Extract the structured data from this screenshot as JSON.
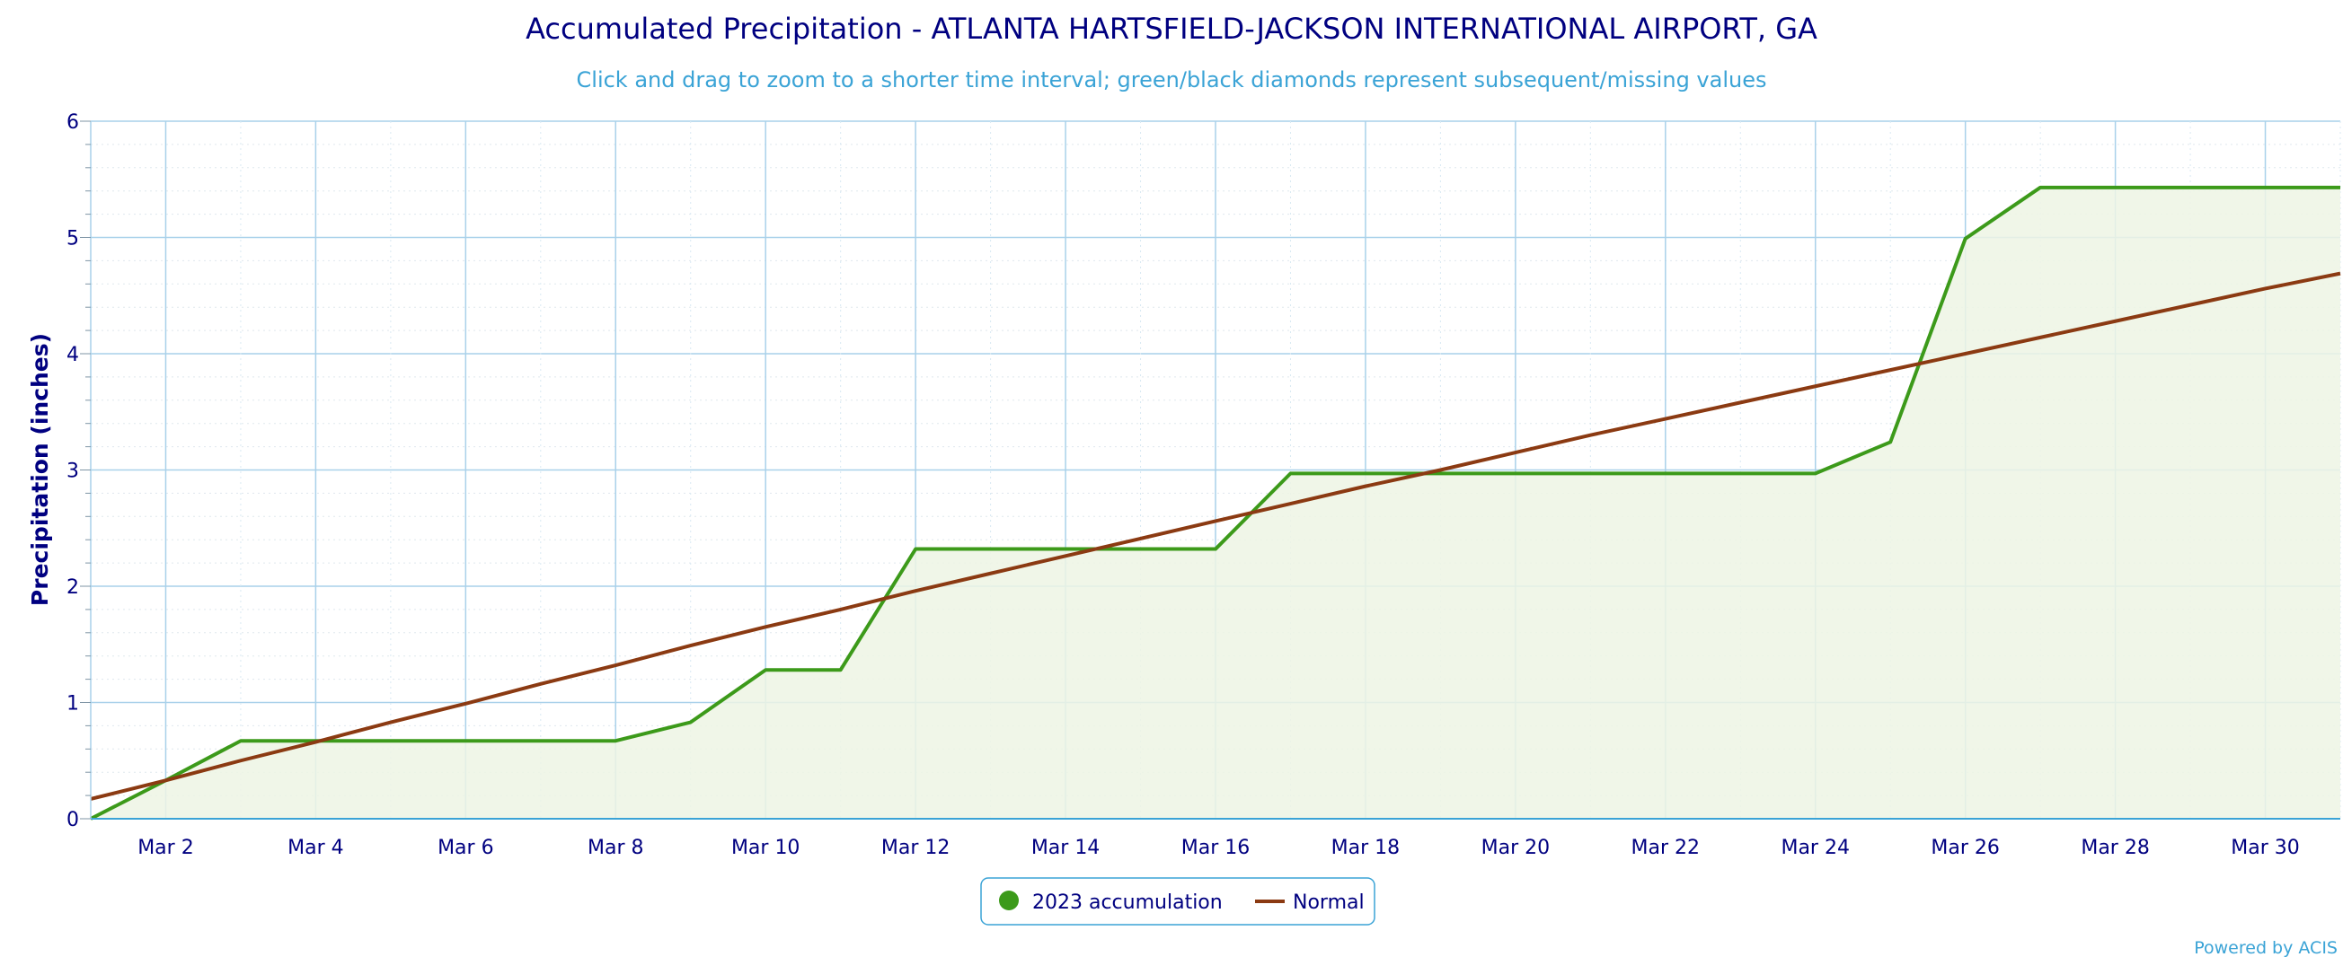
{
  "chart_data": {
    "type": "line",
    "title": "Accumulated Precipitation - ATLANTA HARTSFIELD-JACKSON INTERNATIONAL AIRPORT, GA",
    "subtitle": "Click and drag to zoom to a shorter time interval; green/black diamonds represent subsequent/missing values",
    "ylabel": "Precipitation (inches)",
    "xlabel": "",
    "ylim": [
      0,
      6
    ],
    "xlim": [
      "Mar 1",
      "Mar 31"
    ],
    "grid": true,
    "legend_position": "bottom-center",
    "x_tick_labels": [
      "Mar 2",
      "Mar 4",
      "Mar 6",
      "Mar 8",
      "Mar 10",
      "Mar 12",
      "Mar 14",
      "Mar 16",
      "Mar 18",
      "Mar 20",
      "Mar 22",
      "Mar 24",
      "Mar 26",
      "Mar 28",
      "Mar 30"
    ],
    "y_tick_labels": [
      "0",
      "1",
      "2",
      "3",
      "4",
      "5",
      "6"
    ],
    "x": [
      "Mar 1",
      "Mar 2",
      "Mar 3",
      "Mar 4",
      "Mar 5",
      "Mar 6",
      "Mar 7",
      "Mar 8",
      "Mar 9",
      "Mar 10",
      "Mar 11",
      "Mar 12",
      "Mar 13",
      "Mar 14",
      "Mar 15",
      "Mar 16",
      "Mar 17",
      "Mar 18",
      "Mar 19",
      "Mar 20",
      "Mar 21",
      "Mar 22",
      "Mar 23",
      "Mar 24",
      "Mar 25",
      "Mar 26",
      "Mar 27",
      "Mar 28",
      "Mar 29",
      "Mar 30",
      "Mar 31"
    ],
    "series": [
      {
        "name": "2023 accumulation",
        "color": "#3c9a1a",
        "fill": "#edf5e4",
        "values": [
          0.0,
          0.33,
          0.67,
          0.67,
          0.67,
          0.67,
          0.67,
          0.67,
          0.83,
          1.28,
          1.28,
          2.32,
          2.32,
          2.32,
          2.32,
          2.32,
          2.97,
          2.97,
          2.97,
          2.97,
          2.97,
          2.97,
          2.97,
          2.97,
          3.24,
          4.99,
          5.43,
          5.43,
          5.43,
          5.43,
          5.43
        ]
      },
      {
        "name": "Normal",
        "color": "#8b3a12",
        "values": [
          0.17,
          0.33,
          0.5,
          0.66,
          0.83,
          0.99,
          1.16,
          1.32,
          1.49,
          1.65,
          1.8,
          1.96,
          2.11,
          2.26,
          2.41,
          2.56,
          2.71,
          2.86,
          3.0,
          3.15,
          3.3,
          3.44,
          3.58,
          3.72,
          3.86,
          4.0,
          4.14,
          4.28,
          4.42,
          4.56,
          4.69
        ]
      }
    ]
  },
  "credit": "Powered by ACIS"
}
